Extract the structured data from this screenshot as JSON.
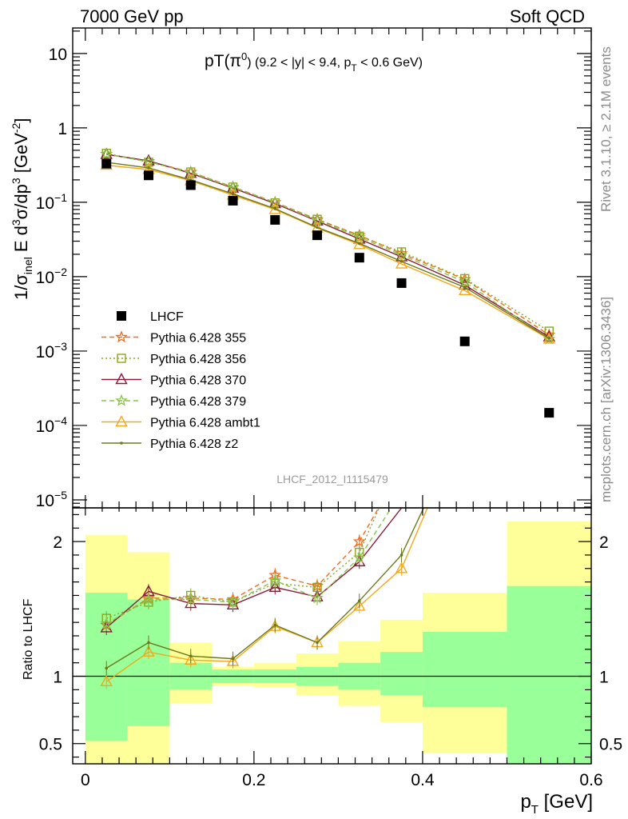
{
  "header": {
    "left": "7000 GeV pp",
    "right": "Soft QCD"
  },
  "side": {
    "top": "Rivet 3.1.10, ≥ 2.1M events",
    "bottom": "mcplots.cern.ch [arXiv:1306.3436]"
  },
  "title": {
    "main": "pT(π",
    "sup": "0",
    "rest": ") (9.2 < |y| < 9.4, p",
    "sub": "T",
    "tail": " < 0.6 GeV)"
  },
  "ylabel_main": {
    "pre": "1/σ",
    "sub": "inel",
    "mid": " E d",
    "sup1": "3",
    "mid2": "σ/dp",
    "sup2": "3",
    "unit": " [GeV",
    "usup": "-2",
    "end": "]"
  },
  "ylabel_ratio": "Ratio to LHCF",
  "xlabel": {
    "main": "p",
    "sub": "T",
    "unit": " [GeV]"
  },
  "watermark": "LHCF_2012_I1115479",
  "colors": {
    "band_green": "#99ff99",
    "band_yellow": "#ffff99",
    "data": "#000000",
    "p355": "#ef6c1a",
    "p356": "#8aa81a",
    "p370": "#8b1a3a",
    "p379": "#8bc34a",
    "ambt1": "#f2a81a",
    "z2": "#6b7a1a"
  },
  "chart_data": {
    "type": "scatter",
    "xlim": [
      -0.015,
      0.6
    ],
    "main_ylim_log": [
      7.8e-06,
      22
    ],
    "main_yticks": [
      {
        "value": 10,
        "base": "10",
        "exp": ""
      },
      {
        "value": 1,
        "base": "1",
        "exp": ""
      },
      {
        "value": 0.1,
        "base": "10",
        "exp": "−1"
      },
      {
        "value": 0.01,
        "base": "10",
        "exp": "−2"
      },
      {
        "value": 0.001,
        "base": "10",
        "exp": "−3"
      },
      {
        "value": 0.0001,
        "base": "10",
        "exp": "−4"
      },
      {
        "value": 1e-05,
        "base": "10",
        "exp": "−5"
      }
    ],
    "ratio_ylim": [
      0.35,
      2.25
    ],
    "ratio_yticks": [
      0.5,
      1,
      2
    ],
    "xticks": [
      0,
      0.2,
      0.4,
      0.6
    ],
    "xtick_labels": [
      "0",
      "0.2",
      "0.4",
      "0.6"
    ],
    "bins": [
      [
        0,
        0.05
      ],
      [
        0.05,
        0.1
      ],
      [
        0.1,
        0.15
      ],
      [
        0.15,
        0.2
      ],
      [
        0.2,
        0.25
      ],
      [
        0.25,
        0.3
      ],
      [
        0.3,
        0.35
      ],
      [
        0.35,
        0.4
      ],
      [
        0.4,
        0.5
      ],
      [
        0.5,
        0.6
      ]
    ],
    "x": [
      0.025,
      0.075,
      0.125,
      0.175,
      0.225,
      0.275,
      0.325,
      0.375,
      0.45,
      0.55
    ],
    "bands": {
      "green": [
        [
          0.52,
          1.62
        ],
        [
          0.63,
          1.57
        ],
        [
          0.9,
          1.1
        ],
        [
          0.95,
          1.05
        ],
        [
          0.95,
          1.05
        ],
        [
          0.93,
          1.07
        ],
        [
          0.9,
          1.1
        ],
        [
          0.86,
          1.18
        ],
        [
          0.77,
          1.33
        ],
        [
          0.35,
          1.67
        ]
      ],
      "yellow": [
        [
          0.35,
          2.05
        ],
        [
          0.35,
          1.92
        ],
        [
          0.8,
          1.25
        ],
        [
          0.93,
          1.07
        ],
        [
          0.92,
          1.1
        ],
        [
          0.86,
          1.17
        ],
        [
          0.78,
          1.26
        ],
        [
          0.66,
          1.42
        ],
        [
          0.43,
          1.62
        ],
        [
          0.35,
          2.15
        ]
      ]
    },
    "legend_position": "left-middle",
    "legend_labels": [
      "LHCF",
      "Pythia 6.428 355",
      "Pythia 6.428 356",
      "Pythia 6.428 370",
      "Pythia 6.428 379",
      "Pythia 6.428 ambt1",
      "Pythia 6.428 z2"
    ],
    "data_points": [
      0.33,
      0.23,
      0.17,
      0.105,
      0.058,
      0.036,
      0.018,
      0.0082,
      0.00135,
      0.000148
    ],
    "series": [
      {
        "name": "Pythia 6.428 355",
        "color": "#ef6c1a",
        "marker": "star",
        "dash": "6,4",
        "values": [
          0.445,
          0.355,
          0.255,
          0.16,
          0.1,
          0.059,
          0.036,
          0.0205,
          0.0092,
          0.00165
        ],
        "ratio": [
          1.38,
          1.58,
          1.58,
          1.57,
          1.75,
          1.67,
          2.0,
          2.55,
          null,
          null
        ]
      },
      {
        "name": "Pythia 6.428 356",
        "color": "#8aa81a",
        "marker": "open-square",
        "dash": "2,3",
        "values": [
          0.455,
          0.345,
          0.255,
          0.16,
          0.098,
          0.059,
          0.035,
          0.0215,
          0.0094,
          0.00185
        ],
        "ratio": [
          1.43,
          1.55,
          1.6,
          1.55,
          1.69,
          1.66,
          1.92,
          2.62,
          null,
          null
        ]
      },
      {
        "name": "Pythia 6.428 370",
        "color": "#8b1a3a",
        "marker": "open-triangle",
        "dash": "",
        "values": [
          0.44,
          0.36,
          0.245,
          0.155,
          0.096,
          0.056,
          0.032,
          0.0185,
          0.0077,
          0.00155
        ],
        "ratio": [
          1.36,
          1.63,
          1.54,
          1.53,
          1.66,
          1.59,
          1.85,
          2.25,
          null,
          null
        ]
      },
      {
        "name": "Pythia 6.428 379",
        "color": "#8bc34a",
        "marker": "star",
        "dash": "6,4",
        "values": [
          0.445,
          0.35,
          0.25,
          0.158,
          0.099,
          0.057,
          0.034,
          0.0195,
          0.0085,
          0.00145
        ],
        "ratio": [
          1.39,
          1.57,
          1.57,
          1.55,
          1.71,
          1.58,
          1.88,
          2.37,
          null,
          null
        ]
      },
      {
        "name": "Pythia 6.428 ambt1",
        "color": "#f2a81a",
        "marker": "open-triangle",
        "dash": "",
        "values": [
          0.315,
          0.275,
          0.195,
          0.125,
          0.08,
          0.045,
          0.027,
          0.0148,
          0.0065,
          0.00145
        ],
        "ratio": [
          0.96,
          1.18,
          1.12,
          1.11,
          1.37,
          1.25,
          1.52,
          1.8,
          2.9,
          null
        ]
      },
      {
        "name": "Pythia 6.428 z2",
        "color": "#6b7a1a",
        "marker": "dot",
        "dash": "",
        "values": [
          0.345,
          0.29,
          0.2,
          0.13,
          0.082,
          0.046,
          0.028,
          0.016,
          0.0072,
          0.00148
        ],
        "ratio": [
          1.06,
          1.25,
          1.15,
          1.13,
          1.38,
          1.25,
          1.56,
          1.9,
          2.9,
          null
        ]
      }
    ]
  }
}
